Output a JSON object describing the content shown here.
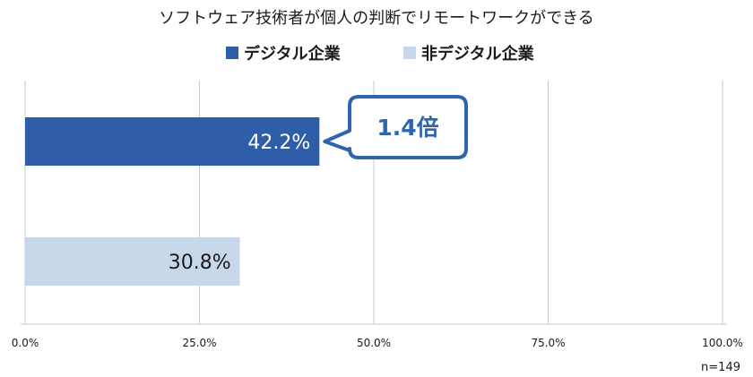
{
  "chart_data": {
    "type": "bar",
    "orientation": "horizontal",
    "title": "ソフトウェア技術者が個人の判断でリモートワークができる",
    "xlabel": "",
    "ylabel": "",
    "xlim": [
      0,
      100
    ],
    "x_ticks": [
      "0.0%",
      "25.0%",
      "50.0%",
      "75.0%",
      "100.0%"
    ],
    "grid": true,
    "legend_position": "top",
    "series": [
      {
        "name": "デジタル企業",
        "value": 42.2,
        "label": "42.2%",
        "color": "#2e5ea8",
        "label_color": "#ffffff"
      },
      {
        "name": "非デジタル企業",
        "value": 30.8,
        "label": "30.8%",
        "color": "#c8d8eb",
        "label_color": "#1a1a1a"
      }
    ],
    "annotation": {
      "text": "1.4倍",
      "color": "#2e64b0"
    },
    "sample_size": "n=149"
  }
}
